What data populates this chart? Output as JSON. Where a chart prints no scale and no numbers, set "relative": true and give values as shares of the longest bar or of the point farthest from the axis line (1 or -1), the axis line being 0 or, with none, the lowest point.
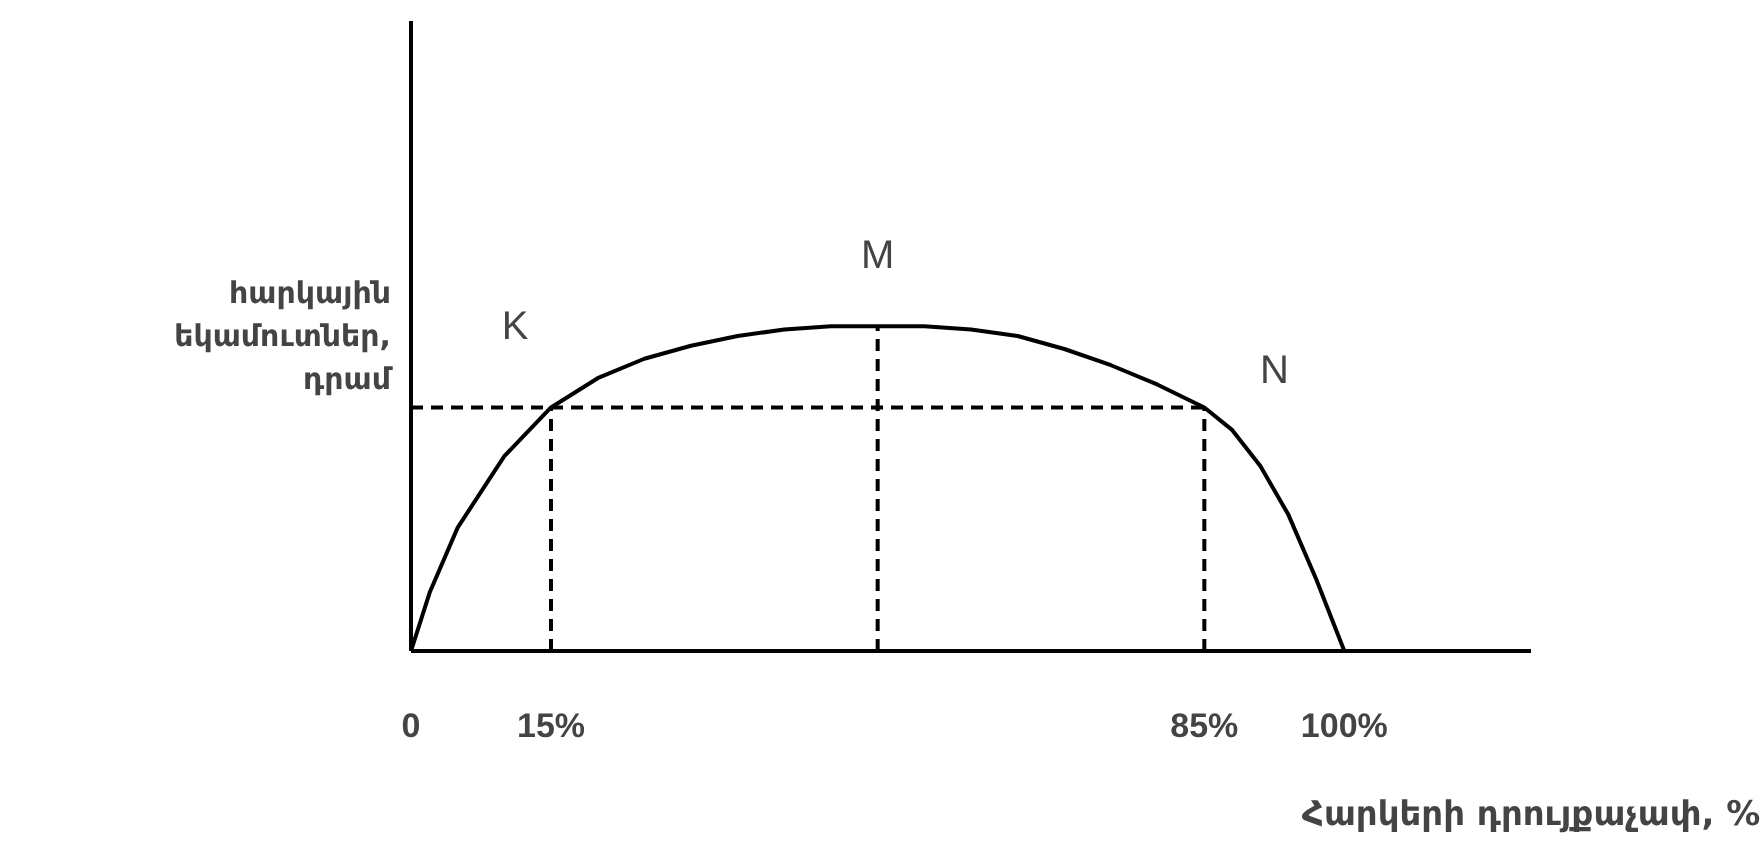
{
  "chart_data": {
    "type": "line",
    "relative": true,
    "xlabel": "Հարկերի դրույքաչափ, %",
    "ylabel": "հարկային եկամուտներ, դրամ",
    "xlim": [
      0,
      120
    ],
    "xticks": [
      0,
      {
        "value": 15,
        "label": "15%"
      },
      {
        "value": 85,
        "label": "85%"
      },
      {
        "value": 100,
        "label": "100%"
      }
    ],
    "tick_labels": "x",
    "grid": false,
    "marker": "none",
    "series": [
      {
        "color": "#000000",
        "x": [
          0,
          2,
          5,
          10,
          15,
          20,
          25,
          30,
          35,
          40,
          45,
          50,
          55,
          60,
          65,
          70,
          75,
          80,
          85,
          88,
          91,
          94,
          97,
          100
        ],
        "values": [
          0,
          0.18,
          0.38,
          0.6,
          0.75,
          0.84,
          0.9,
          0.94,
          0.97,
          0.99,
          1,
          1,
          1,
          0.99,
          0.97,
          0.93,
          0.88,
          0.82,
          0.75,
          0.68,
          0.57,
          0.42,
          0.22,
          0
        ]
      },
      {
        "color": "#000000",
        "line_style": "dashed",
        "x": [
          0,
          85
        ],
        "values": [
          0.75,
          0.75
        ]
      },
      {
        "color": "#000000",
        "line_style": "dashed",
        "x": [
          15,
          15
        ],
        "values": [
          0,
          0.75
        ]
      },
      {
        "color": "#000000",
        "line_style": "dashed",
        "x": [
          50,
          50
        ],
        "values": [
          0,
          1
        ]
      },
      {
        "color": "#000000",
        "line_style": "dashed",
        "x": [
          85,
          85
        ],
        "values": [
          0,
          0.75
        ]
      }
    ],
    "annotations": [
      {
        "text": "K",
        "x": 15,
        "y": 0.75
      },
      {
        "text": "M",
        "x": 50,
        "y": 1
      },
      {
        "text": "N",
        "x": 85,
        "y": 0.75
      }
    ]
  }
}
